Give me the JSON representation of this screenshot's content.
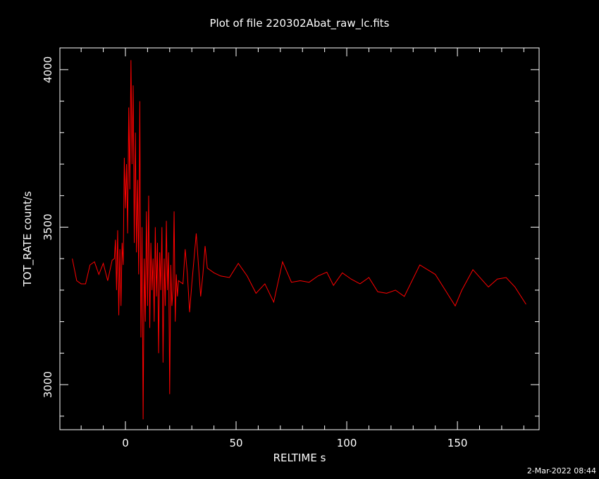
{
  "chart_data": {
    "type": "line",
    "title": "Plot of file 220302Abat_raw_lc.fits",
    "xlabel": "RELTIME  s",
    "ylabel": "TOT_RATE  count/s",
    "timestamp": "2-Mar-2022 08:44",
    "xlim": [
      -29.6,
      186.9
    ],
    "ylim": [
      2857,
      4069
    ],
    "xticks": [
      0,
      50,
      100,
      150
    ],
    "yticks": [
      3000,
      3500,
      4000
    ],
    "xminorticks": [
      -20,
      -10,
      10,
      20,
      30,
      40,
      60,
      70,
      80,
      90,
      110,
      120,
      130,
      140,
      160,
      170,
      180
    ],
    "yminorticks": [
      2900,
      3100,
      3200,
      3300,
      3400,
      3600,
      3700,
      3800,
      3900
    ],
    "x": [
      -24,
      -22,
      -20,
      -18,
      -16,
      -14,
      -12,
      -10,
      -8,
      -6,
      -5,
      -4.5,
      -4,
      -3.5,
      -3,
      -2.5,
      -2,
      -1.5,
      -1,
      -0.5,
      0,
      0.5,
      1,
      1.5,
      2,
      2.5,
      3,
      3.5,
      4,
      4.5,
      5,
      5.5,
      6,
      6.5,
      7,
      7.5,
      8,
      8.5,
      9,
      9.5,
      10,
      10.5,
      11,
      11.5,
      12,
      12.5,
      13,
      13.5,
      14,
      14.5,
      15,
      15.5,
      16,
      16.5,
      17,
      17.5,
      18,
      18.5,
      19,
      19.5,
      20,
      20.5,
      21,
      21.5,
      22,
      22.5,
      23,
      23.5,
      24,
      26,
      27,
      28,
      29,
      30,
      32,
      34,
      35,
      36,
      37,
      40,
      43,
      47,
      51,
      55,
      59,
      63,
      67,
      71,
      75,
      79,
      83,
      87,
      91,
      94,
      98,
      102,
      106,
      110,
      114,
      118,
      122,
      126,
      133,
      140,
      149,
      152,
      157,
      164,
      168,
      172,
      176,
      181
    ],
    "series": [
      {
        "name": "TOT_RATE",
        "color": "#ff0000",
        "values": [
          3400,
          3330,
          3320,
          3320,
          3380,
          3390,
          3350,
          3385,
          3330,
          3395,
          3400,
          3460,
          3300,
          3490,
          3220,
          3430,
          3250,
          3450,
          3380,
          3720,
          3560,
          3700,
          3480,
          3880,
          3620,
          4030,
          3700,
          3950,
          3450,
          3800,
          3420,
          3650,
          3350,
          3900,
          3150,
          3500,
          2890,
          3400,
          3200,
          3550,
          3250,
          3600,
          3180,
          3450,
          3300,
          3400,
          3200,
          3500,
          3280,
          3450,
          3100,
          3420,
          3300,
          3500,
          3070,
          3400,
          3250,
          3520,
          3300,
          3420,
          2970,
          3380,
          3250,
          3300,
          3550,
          3200,
          3350,
          3280,
          3330,
          3320,
          3430,
          3350,
          3230,
          3320,
          3480,
          3280,
          3350,
          3440,
          3370,
          3355,
          3345,
          3340,
          3385,
          3345,
          3290,
          3320,
          3262,
          3390,
          3325,
          3330,
          3325,
          3345,
          3357,
          3315,
          3355,
          3335,
          3320,
          3340,
          3295,
          3290,
          3300,
          3280,
          3380,
          3350,
          3250,
          3300,
          3365,
          3310,
          3335,
          3340,
          3310,
          3255
        ]
      }
    ]
  }
}
